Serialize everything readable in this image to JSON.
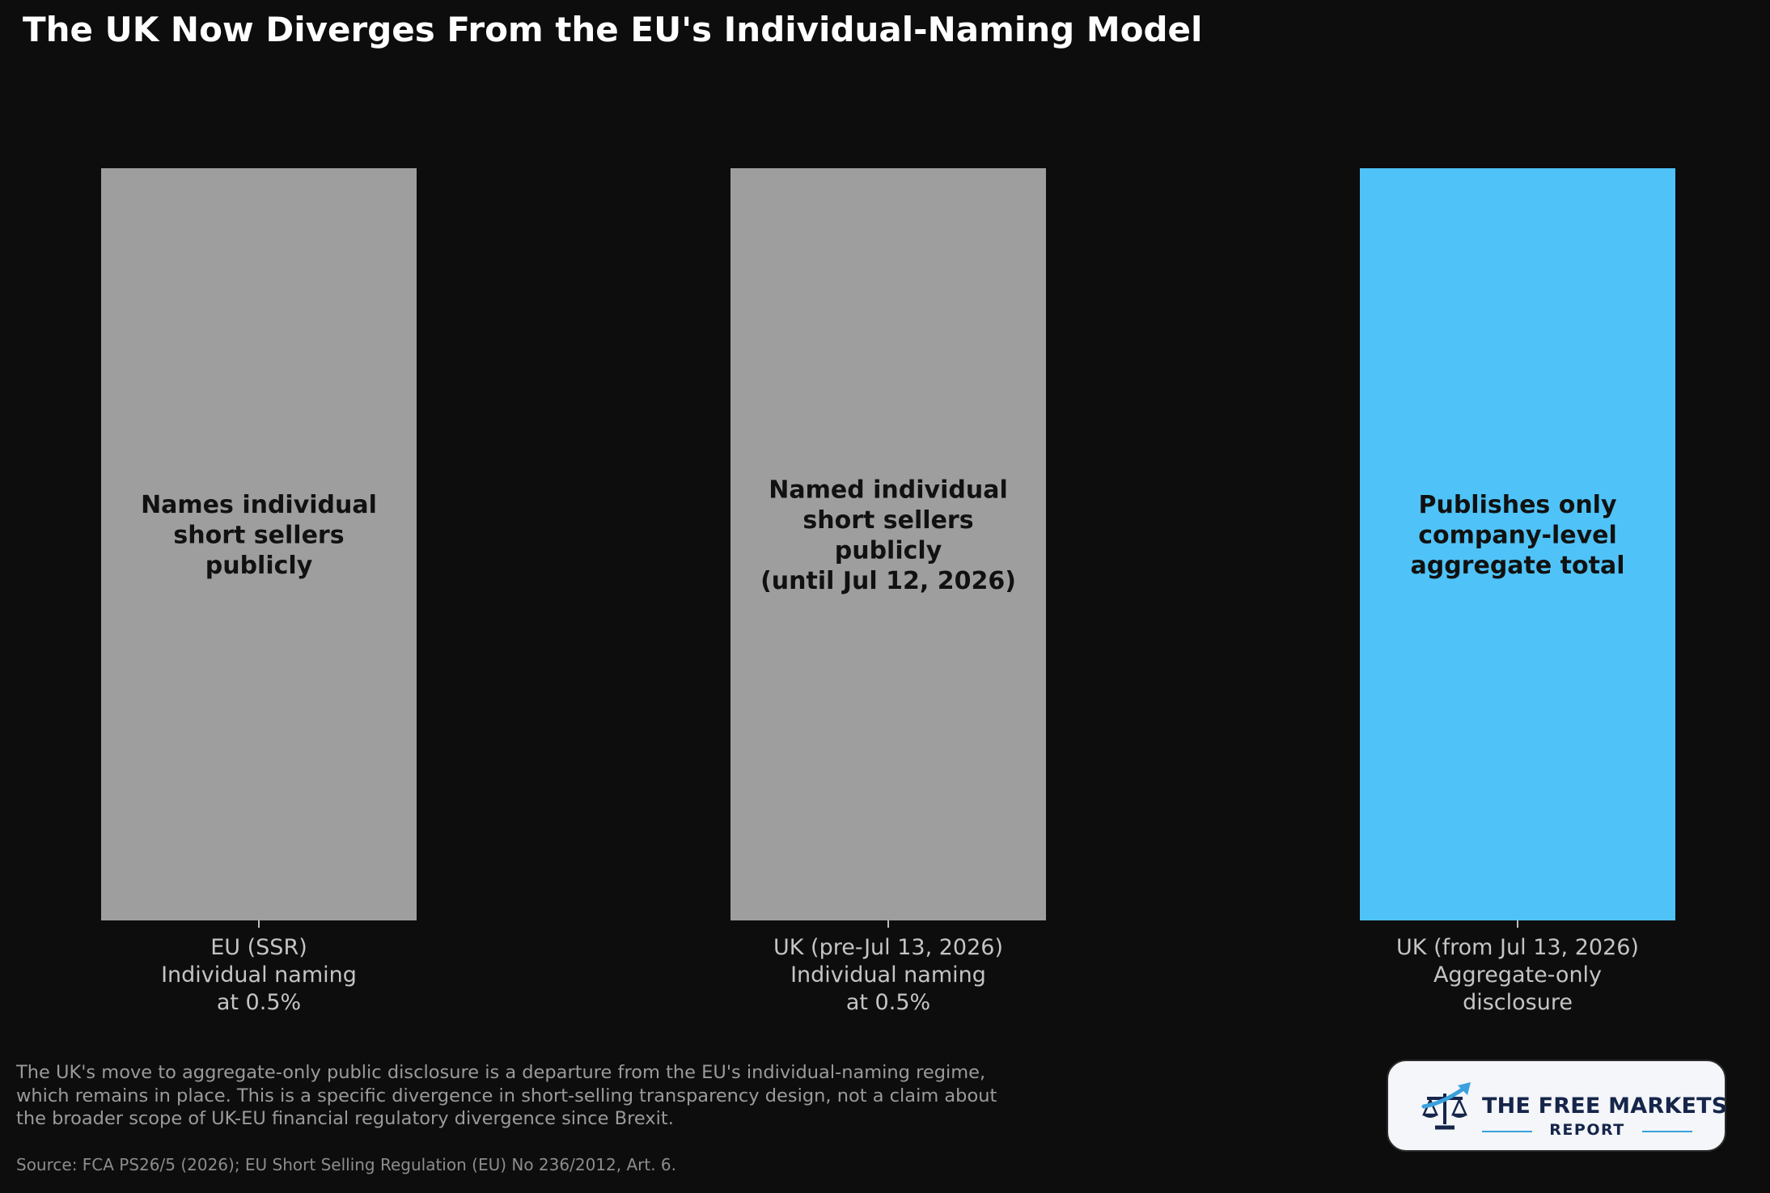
{
  "chart_data": {
    "type": "bar",
    "title": "The UK Now Diverges From the EU's Individual-Naming Model",
    "categories": [
      [
        "EU (SSR)",
        "Individual naming",
        "at 0.5%"
      ],
      [
        "UK (pre-Jul 13, 2026)",
        "Individual naming",
        "at 0.5%"
      ],
      [
        "UK (from Jul 13, 2026)",
        "Aggregate-only",
        "disclosure"
      ]
    ],
    "values": [
      1,
      1,
      1
    ],
    "bar_labels": [
      [
        "Names individual",
        "short sellers",
        "publicly"
      ],
      [
        "Named individual",
        "short sellers",
        "publicly",
        "(until Jul 12, 2026)"
      ],
      [
        "Publishes only",
        "company-level",
        "aggregate total"
      ]
    ],
    "colors": [
      "#9e9e9e",
      "#9e9e9e",
      "#4fc3f7"
    ],
    "ylim": [
      0,
      1
    ],
    "grid": false,
    "legend": "none"
  },
  "note": "The UK's move to aggregate-only public disclosure is a departure from the EU's individual-naming regime, which remains in place. This is a specific divergence in short-selling transparency design, not a claim about the broader scope of UK-EU financial regulatory divergence since Brexit.",
  "source": "Source: FCA PS26/5 (2026); EU Short Selling Regulation (EU) No 236/2012, Art. 6.",
  "logo": {
    "line1": "THE FREE MARKETS",
    "line2": "REPORT",
    "icon": "scales-arrow-icon",
    "colors": {
      "navy": "#16254a",
      "blue": "#3aa0de"
    }
  }
}
